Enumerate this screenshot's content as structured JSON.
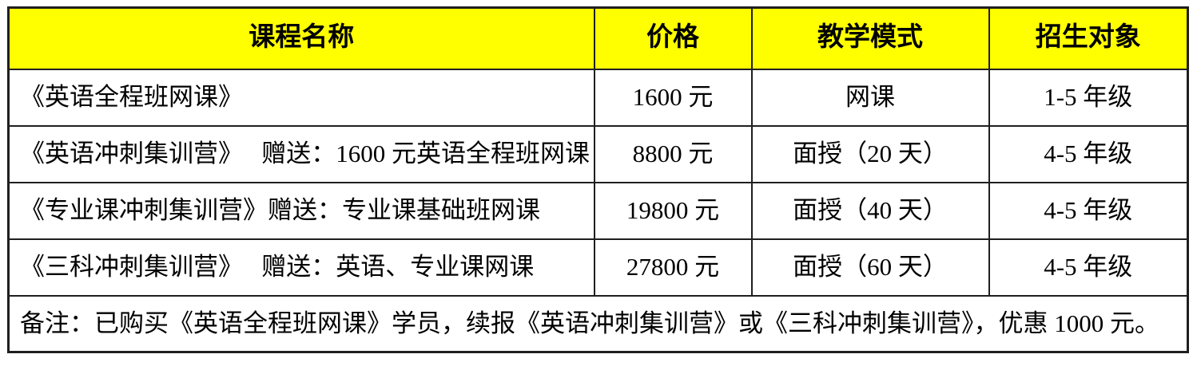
{
  "colors": {
    "header_background": "#FFFF00",
    "border": "#1F1F1F",
    "text": "#000000",
    "page_background": "#FFFFFF"
  },
  "table": {
    "headers": {
      "course": "课程名称",
      "price": "价格",
      "mode": "教学模式",
      "target": "招生对象"
    },
    "rows": [
      {
        "course": "《英语全程班网课》",
        "price": "1600 元",
        "mode": "网课",
        "target": "1-5 年级"
      },
      {
        "course": "《英语冲刺集训营》　 赠送：1600 元英语全程班网课",
        "price": "8800 元",
        "mode": "面授（20 天）",
        "target": "4-5 年级"
      },
      {
        "course": "《专业课冲刺集训营》赠送：专业课基础班网课",
        "price": "19800 元",
        "mode": "面授（40 天）",
        "target": "4-5 年级"
      },
      {
        "course": "《三科冲刺集训营》　 赠送：英语、专业课网课",
        "price": "27800 元",
        "mode": "面授（60 天）",
        "target": "4-5 年级"
      }
    ],
    "note": "备注：已购买《英语全程班网课》学员，续报《英语冲刺集训营》或《三科冲刺集训营》，优惠 1000 元。"
  }
}
